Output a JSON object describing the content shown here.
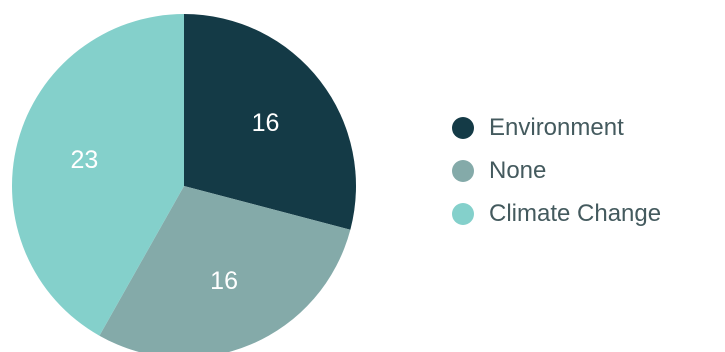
{
  "chart_data": {
    "type": "pie",
    "categories": [
      "Environment",
      "None",
      "Climate Change"
    ],
    "values": [
      16,
      16,
      23
    ],
    "colors": [
      "#143a46",
      "#84aaa9",
      "#84d0cb"
    ],
    "data_labels": [
      "16",
      "16",
      "23"
    ],
    "start_angle_deg": 0,
    "direction": "clockwise",
    "legend": {
      "position": "right",
      "entries": [
        "Environment",
        "None",
        "Climate Change"
      ]
    }
  }
}
